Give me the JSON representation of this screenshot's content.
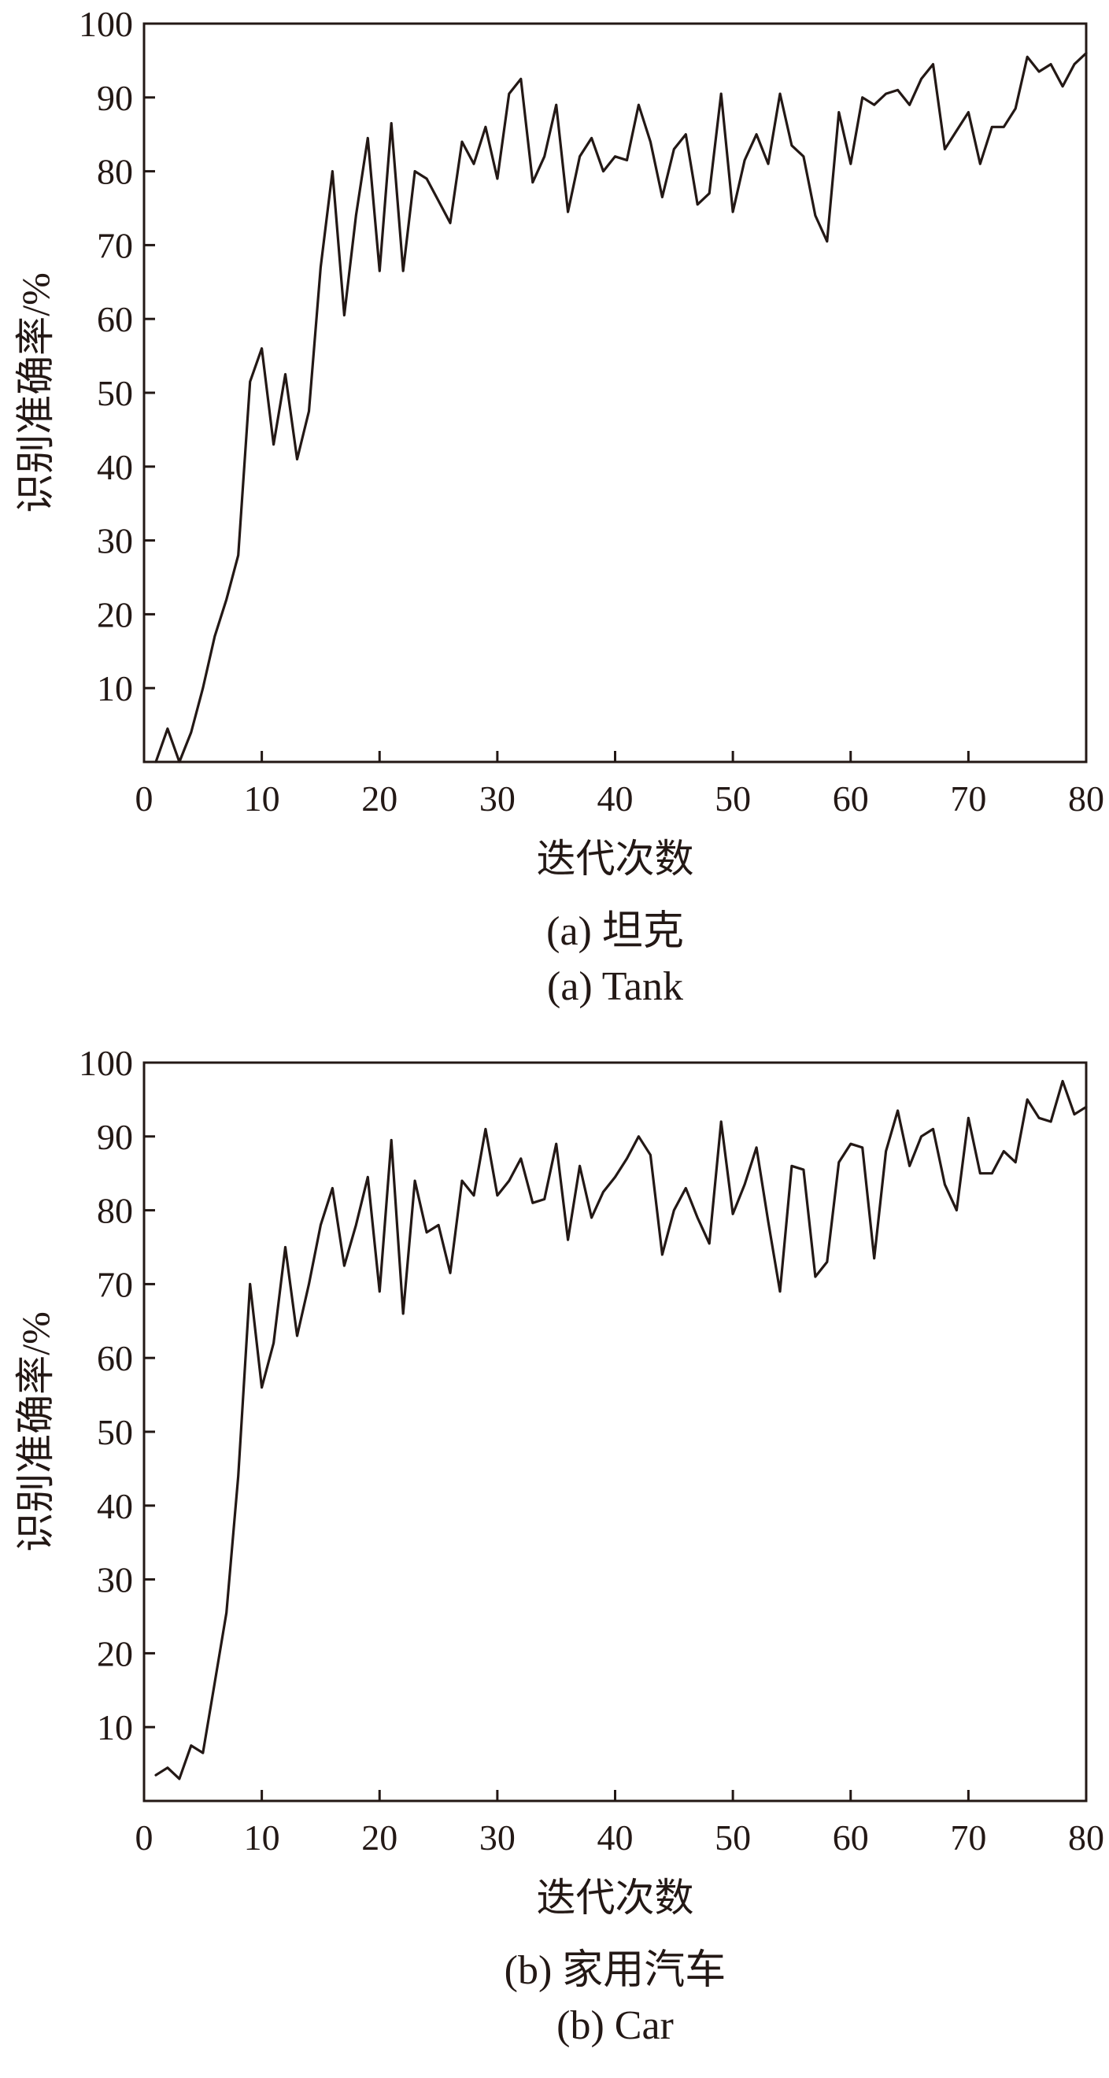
{
  "chart_data": [
    {
      "type": "line",
      "xlabel": "迭代次数",
      "ylabel": "识别准确率/%",
      "caption_cn": "(a) 坦克",
      "caption_en": "(a) Tank",
      "xlim": [
        0,
        80
      ],
      "ylim": [
        0,
        100
      ],
      "xticks": [
        0,
        10,
        20,
        30,
        40,
        50,
        60,
        70,
        80
      ],
      "yticks": [
        10,
        20,
        30,
        40,
        50,
        60,
        70,
        80,
        90,
        100
      ],
      "grid": false,
      "series": [
        {
          "x": [
            1,
            2,
            3,
            4,
            5,
            6,
            7,
            8,
            9,
            10,
            11,
            12,
            13,
            14,
            15,
            16,
            17,
            18,
            19,
            20,
            21,
            22,
            23,
            24,
            25,
            26,
            27,
            28,
            29,
            30,
            31,
            32,
            33,
            34,
            35,
            36,
            37,
            38,
            39,
            40,
            41,
            42,
            43,
            44,
            45,
            46,
            47,
            48,
            49,
            50,
            51,
            52,
            53,
            54,
            55,
            56,
            57,
            58,
            59,
            60,
            61,
            62,
            63,
            64,
            65,
            66,
            67,
            68,
            69,
            70,
            71,
            72,
            73,
            74,
            75,
            76,
            77,
            78,
            79,
            80
          ],
          "values": [
            0,
            4.5,
            0,
            4,
            10,
            17,
            22,
            28,
            51.5,
            56,
            43,
            52.5,
            41,
            47.5,
            67,
            80,
            60.5,
            74,
            84.5,
            66.5,
            86.5,
            66.5,
            80,
            79,
            76,
            73,
            84,
            81,
            86,
            79,
            90.5,
            92.5,
            78.5,
            82,
            89,
            74.5,
            82,
            84.5,
            80,
            82,
            81.5,
            89,
            84,
            76.5,
            83,
            85,
            75.5,
            77,
            90.5,
            74.5,
            81.5,
            85,
            81,
            90.5,
            83.5,
            82,
            74,
            70.5,
            88,
            81,
            90,
            89,
            90.5,
            91,
            89,
            92.5,
            94.5,
            83,
            85.5,
            88,
            81,
            86,
            86,
            88.5,
            95.5,
            93.5,
            94.5,
            91.5,
            94.5,
            96
          ]
        }
      ]
    },
    {
      "type": "line",
      "xlabel": "迭代次数",
      "ylabel": "识别准确率/%",
      "caption_cn": "(b) 家用汽车",
      "caption_en": "(b) Car",
      "xlim": [
        0,
        80
      ],
      "ylim": [
        0,
        100
      ],
      "xticks": [
        0,
        10,
        20,
        30,
        40,
        50,
        60,
        70,
        80
      ],
      "yticks": [
        10,
        20,
        30,
        40,
        50,
        60,
        70,
        80,
        90,
        100
      ],
      "grid": false,
      "series": [
        {
          "x": [
            1,
            2,
            3,
            4,
            5,
            6,
            7,
            8,
            9,
            10,
            11,
            12,
            13,
            14,
            15,
            16,
            17,
            18,
            19,
            20,
            21,
            22,
            23,
            24,
            25,
            26,
            27,
            28,
            29,
            30,
            31,
            32,
            33,
            34,
            35,
            36,
            37,
            38,
            39,
            40,
            41,
            42,
            43,
            44,
            45,
            46,
            47,
            48,
            49,
            50,
            51,
            52,
            53,
            54,
            55,
            56,
            57,
            58,
            59,
            60,
            61,
            62,
            63,
            64,
            65,
            66,
            67,
            68,
            69,
            70,
            71,
            72,
            73,
            74,
            75,
            76,
            77,
            78,
            79,
            80
          ],
          "values": [
            3.5,
            4.5,
            3,
            7.5,
            6.5,
            16,
            25.5,
            44,
            70,
            56,
            62,
            75,
            63,
            70,
            78,
            83,
            72.5,
            78,
            84.5,
            69,
            89.5,
            66,
            84,
            77,
            78,
            71.5,
            84,
            82,
            91,
            82,
            84,
            87,
            81,
            81.5,
            89,
            76,
            86,
            79,
            82.5,
            84.5,
            87,
            90,
            87.5,
            74,
            80,
            83,
            79,
            75.5,
            92,
            79.5,
            83.5,
            88.5,
            78.5,
            69,
            86,
            85.5,
            71,
            73,
            86.5,
            89,
            88.5,
            73.5,
            88,
            93.5,
            86,
            90,
            91,
            83.5,
            80,
            92.5,
            85,
            85,
            88,
            86.5,
            95,
            92.5,
            92,
            97.5,
            93,
            94
          ]
        }
      ]
    }
  ]
}
